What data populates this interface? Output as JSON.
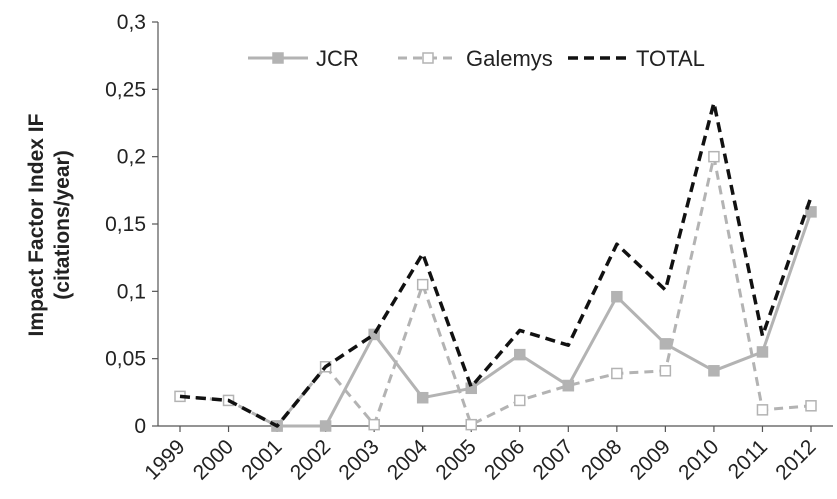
{
  "chart_data": {
    "type": "line",
    "title": "",
    "xlabel": "",
    "ylabel_lines": [
      "Impact Factor Index IF",
      "(citations/year)"
    ],
    "categories": [
      "1999",
      "2000",
      "2001",
      "2002",
      "2003",
      "2004",
      "2005",
      "2006",
      "2007",
      "2008",
      "2009",
      "2010",
      "2011",
      "2012"
    ],
    "ylim": [
      0,
      0.3
    ],
    "yticks": [
      0,
      0.05,
      0.1,
      0.15,
      0.2,
      0.25,
      0.3
    ],
    "ytick_labels": [
      "0",
      "0,05",
      "0,1",
      "0,15",
      "0,2",
      "0,25",
      "0,3"
    ],
    "grid": false,
    "legend_position": "top",
    "series": [
      {
        "name": "JCR",
        "style": "solid",
        "marker": "filled-square",
        "color": "#b3b3b3",
        "values": [
          null,
          null,
          0.0,
          0.0,
          0.068,
          0.021,
          0.028,
          0.053,
          0.03,
          0.096,
          0.061,
          0.041,
          0.055,
          0.159
        ]
      },
      {
        "name": "Galemys",
        "style": "dashed",
        "marker": "open-square",
        "color": "#b3b3b3",
        "values": [
          0.022,
          0.019,
          0.0,
          0.044,
          0.001,
          0.105,
          0.001,
          0.019,
          0.03,
          0.039,
          0.041,
          0.2,
          0.012,
          0.015
        ]
      },
      {
        "name": "TOTAL",
        "style": "dashed",
        "marker": "none",
        "color": "#111111",
        "values": [
          0.022,
          0.019,
          0.0,
          0.044,
          0.068,
          0.128,
          0.029,
          0.071,
          0.06,
          0.135,
          0.101,
          0.24,
          0.067,
          0.17
        ]
      }
    ]
  }
}
